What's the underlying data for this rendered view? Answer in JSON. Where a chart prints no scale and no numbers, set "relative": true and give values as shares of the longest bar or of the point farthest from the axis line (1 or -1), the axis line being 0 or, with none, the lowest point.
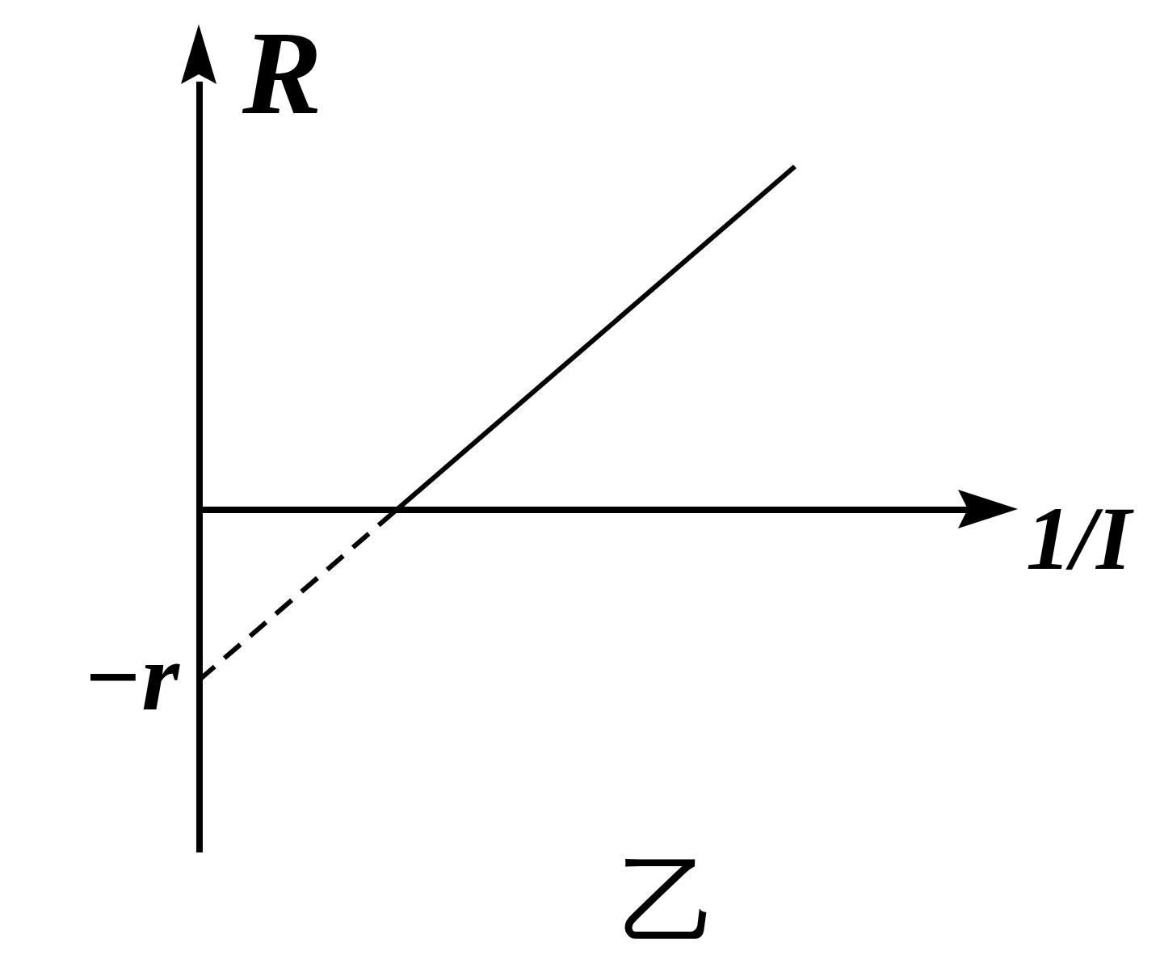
{
  "chart_data": {
    "type": "line",
    "xlabel": "1/I",
    "ylabel": "R",
    "categories": [
      null,
      null,
      null,
      null
    ],
    "relative": true,
    "tick_labels": false,
    "series": [
      {
        "color": "#000000",
        "line_style": "dashed",
        "values": [
          -0.5,
          0,
          null,
          null
        ]
      },
      {
        "color": "#000000",
        "line_style": "solid",
        "values": [
          null,
          0,
          0.5,
          1
        ]
      }
    ],
    "annotations": [
      "−r",
      "乙"
    ]
  }
}
